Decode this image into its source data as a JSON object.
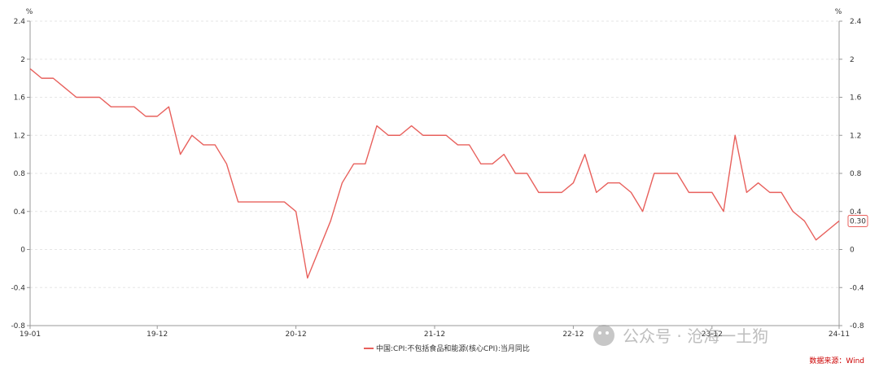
{
  "chart_data": {
    "type": "line",
    "unit_left": "%",
    "unit_right": "%",
    "ylim": [
      -0.8,
      2.4
    ],
    "yticks": [
      2.4,
      2,
      1.6,
      1.2,
      0.8,
      0.4,
      0,
      -0.4,
      -0.8
    ],
    "ytick_labels": [
      "2.4",
      "2",
      "1.6",
      "1.2",
      "0.8",
      "0.4",
      "0",
      "-0.4",
      "-0.8"
    ],
    "xticks": [
      {
        "label": "19-01",
        "index": 0
      },
      {
        "label": "19-12",
        "index": 11
      },
      {
        "label": "20-12",
        "index": 23
      },
      {
        "label": "21-12",
        "index": 35
      },
      {
        "label": "22-12",
        "index": 47
      },
      {
        "label": "23-12",
        "index": 59
      },
      {
        "label": "24-11",
        "index": 70
      }
    ],
    "grid": true,
    "series": [
      {
        "name": "中国:CPI:不包括食品和能源(核心CPI):当月同比",
        "color": "#e8605c",
        "values": [
          1.9,
          1.8,
          1.8,
          1.7,
          1.6,
          1.6,
          1.6,
          1.5,
          1.5,
          1.5,
          1.4,
          1.4,
          1.5,
          1.0,
          1.2,
          1.1,
          1.1,
          0.9,
          0.5,
          0.5,
          0.5,
          0.5,
          0.5,
          0.4,
          -0.3,
          0.0,
          0.3,
          0.7,
          0.9,
          0.9,
          1.3,
          1.2,
          1.2,
          1.3,
          1.2,
          1.2,
          1.2,
          1.1,
          1.1,
          0.9,
          0.9,
          1.0,
          0.8,
          0.8,
          0.6,
          0.6,
          0.6,
          0.7,
          1.0,
          0.6,
          0.7,
          0.7,
          0.6,
          0.4,
          0.8,
          0.8,
          0.8,
          0.6,
          0.6,
          0.6,
          0.4,
          1.2,
          0.6,
          0.7,
          0.6,
          0.6,
          0.4,
          0.3,
          0.1,
          0.2,
          0.3
        ]
      }
    ],
    "last_value_label": "0.30",
    "legend_position": "bottom-center"
  },
  "source_text": "数据来源：Wind",
  "watermark_text": "公众号 · 沧海一土狗",
  "colors": {
    "line": "#e8605c",
    "axis": "#333333",
    "grid": "#e6e6e6",
    "source": "#cc0000"
  }
}
